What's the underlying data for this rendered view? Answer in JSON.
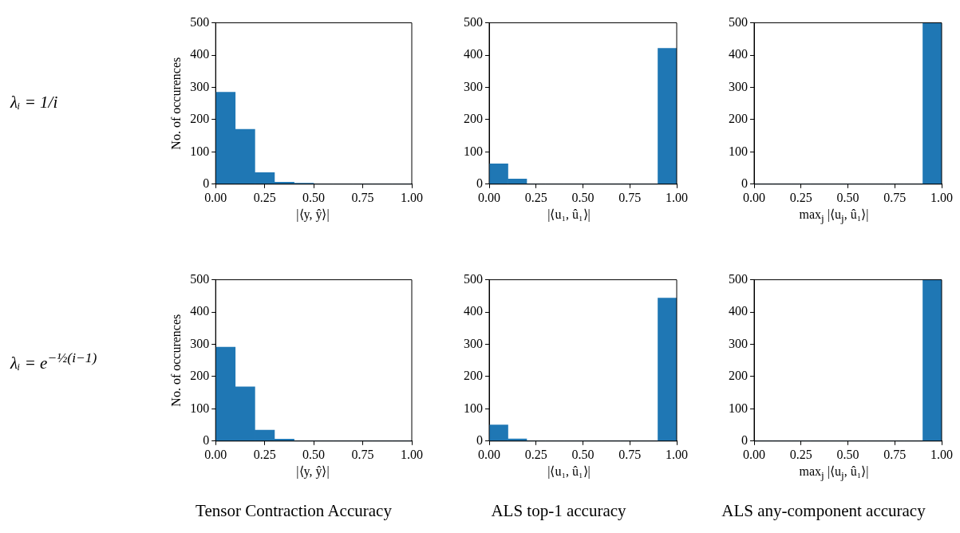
{
  "chart_data": [
    {
      "type": "histogram",
      "annotations": [
        "λᵢ = 1/i"
      ],
      "ylabel": "No. of occurences",
      "xlabel": "|⟨y, ŷ⟩|",
      "bins": [
        0,
        0.1,
        0.2,
        0.3,
        0.4,
        0.5,
        0.6,
        0.7,
        0.8,
        0.9,
        1
      ],
      "values": [
        285,
        170,
        36,
        6,
        3,
        0,
        0,
        0,
        0,
        0
      ],
      "color": "#1f77b4",
      "xlim": [
        0,
        1
      ],
      "ylim": [
        0,
        500
      ],
      "xticks": [
        {
          "value": 0,
          "label": "0.00"
        },
        {
          "value": 0.25,
          "label": "0.25"
        },
        {
          "value": 0.5,
          "label": "0.50"
        },
        {
          "value": 0.75,
          "label": "0.75"
        },
        {
          "value": 1,
          "label": "1.00"
        }
      ],
      "yticks": [
        0,
        100,
        200,
        300,
        400,
        500
      ],
      "grid": false,
      "legend": false
    },
    {
      "type": "histogram",
      "xlabel": "|⟨u₁, û₁⟩|",
      "bins": [
        0,
        0.1,
        0.2,
        0.3,
        0.4,
        0.5,
        0.6,
        0.7,
        0.8,
        0.9,
        1
      ],
      "values": [
        63,
        16,
        0,
        0,
        0,
        0,
        0,
        0,
        0,
        421
      ],
      "color": "#1f77b4",
      "xlim": [
        0,
        1
      ],
      "ylim": [
        0,
        500
      ],
      "xticks": [
        {
          "value": 0,
          "label": "0.00"
        },
        {
          "value": 0.25,
          "label": "0.25"
        },
        {
          "value": 0.5,
          "label": "0.50"
        },
        {
          "value": 0.75,
          "label": "0.75"
        },
        {
          "value": 1,
          "label": "1.00"
        }
      ],
      "yticks": [
        0,
        100,
        200,
        300,
        400,
        500
      ],
      "grid": false,
      "legend": false
    },
    {
      "type": "histogram",
      "xlabel": "max$_{j}$ |⟨u$_{j}$, û₁⟩|",
      "bins": [
        0,
        0.1,
        0.2,
        0.3,
        0.4,
        0.5,
        0.6,
        0.7,
        0.8,
        0.9,
        1
      ],
      "values": [
        0,
        0,
        0,
        0,
        0,
        0,
        0,
        0,
        0,
        500
      ],
      "color": "#1f77b4",
      "xlim": [
        0,
        1
      ],
      "ylim": [
        0,
        500
      ],
      "xticks": [
        {
          "value": 0,
          "label": "0.00"
        },
        {
          "value": 0.25,
          "label": "0.25"
        },
        {
          "value": 0.5,
          "label": "0.50"
        },
        {
          "value": 0.75,
          "label": "0.75"
        },
        {
          "value": 1,
          "label": "1.00"
        }
      ],
      "yticks": [
        0,
        100,
        200,
        300,
        400,
        500
      ],
      "grid": false,
      "legend": false
    },
    {
      "type": "histogram",
      "title": "Tensor Contraction Accuracy",
      "annotations": [
        "λᵢ = e$^{−½(i−1)}$"
      ],
      "ylabel": "No. of occurences",
      "xlabel": "|⟨y, ŷ⟩|",
      "bins": [
        0,
        0.1,
        0.2,
        0.3,
        0.4,
        0.5,
        0.6,
        0.7,
        0.8,
        0.9,
        1
      ],
      "values": [
        291,
        168,
        34,
        6,
        0,
        0,
        0,
        0,
        0,
        0
      ],
      "color": "#1f77b4",
      "xlim": [
        0,
        1
      ],
      "ylim": [
        0,
        500
      ],
      "xticks": [
        {
          "value": 0,
          "label": "0.00"
        },
        {
          "value": 0.25,
          "label": "0.25"
        },
        {
          "value": 0.5,
          "label": "0.50"
        },
        {
          "value": 0.75,
          "label": "0.75"
        },
        {
          "value": 1,
          "label": "1.00"
        }
      ],
      "yticks": [
        0,
        100,
        200,
        300,
        400,
        500
      ],
      "grid": false,
      "legend": false
    },
    {
      "type": "histogram",
      "title": "ALS top-1 accuracy",
      "xlabel": "|⟨u₁, û₁⟩|",
      "bins": [
        0,
        0.1,
        0.2,
        0.3,
        0.4,
        0.5,
        0.6,
        0.7,
        0.8,
        0.9,
        1
      ],
      "values": [
        50,
        7,
        0,
        0,
        0,
        0,
        0,
        0,
        0,
        443
      ],
      "color": "#1f77b4",
      "xlim": [
        0,
        1
      ],
      "ylim": [
        0,
        500
      ],
      "xticks": [
        {
          "value": 0,
          "label": "0.00"
        },
        {
          "value": 0.25,
          "label": "0.25"
        },
        {
          "value": 0.5,
          "label": "0.50"
        },
        {
          "value": 0.75,
          "label": "0.75"
        },
        {
          "value": 1,
          "label": "1.00"
        }
      ],
      "yticks": [
        0,
        100,
        200,
        300,
        400,
        500
      ],
      "grid": false,
      "legend": false
    },
    {
      "type": "histogram",
      "title": "ALS any-component accuracy",
      "xlabel": "max$_{j}$ |⟨u$_{j}$, û₁⟩|",
      "bins": [
        0,
        0.1,
        0.2,
        0.3,
        0.4,
        0.5,
        0.6,
        0.7,
        0.8,
        0.9,
        1
      ],
      "values": [
        0,
        0,
        0,
        0,
        0,
        0,
        0,
        0,
        0,
        500
      ],
      "color": "#1f77b4",
      "xlim": [
        0,
        1
      ],
      "ylim": [
        0,
        500
      ],
      "xticks": [
        {
          "value": 0,
          "label": "0.00"
        },
        {
          "value": 0.25,
          "label": "0.25"
        },
        {
          "value": 0.5,
          "label": "0.50"
        },
        {
          "value": 0.75,
          "label": "0.75"
        },
        {
          "value": 1,
          "label": "1.00"
        }
      ],
      "yticks": [
        0,
        100,
        200,
        300,
        400,
        500
      ],
      "grid": false,
      "legend": false
    }
  ]
}
